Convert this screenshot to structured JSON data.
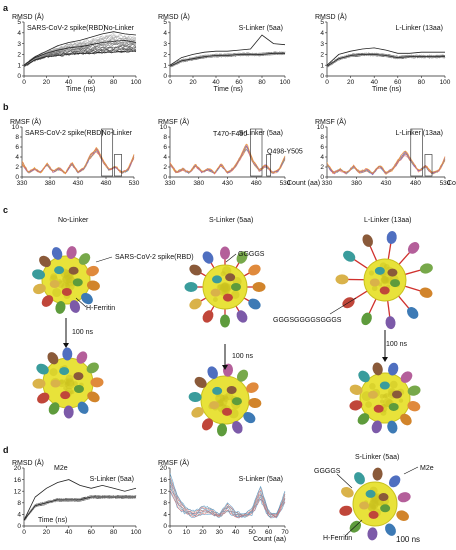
{
  "panel_letters": {
    "a": "a",
    "b": "b",
    "c": "c",
    "d": "d"
  },
  "chart_data": [
    {
      "id": "a1",
      "type": "line",
      "title": "No-Linker",
      "annotation": "SARS-CoV-2 spike(RBD)",
      "ylabel": "RMSD (Å)",
      "xlabel": "Time (ns)",
      "xlim": [
        0,
        100
      ],
      "ylim": [
        0,
        5
      ],
      "xticks": [
        0,
        20,
        40,
        60,
        80,
        100
      ],
      "yticks": [
        0,
        1,
        2,
        3,
        4,
        5
      ],
      "n_traces": 24,
      "trace_color": "#666666",
      "series": [
        {
          "x": [
            0,
            10,
            20,
            30,
            40,
            50,
            60,
            70,
            80,
            90,
            100
          ],
          "values": [
            1.0,
            1.7,
            2.1,
            2.4,
            2.6,
            2.7,
            2.9,
            3.1,
            3.2,
            3.3,
            3.1
          ]
        },
        {
          "x": [
            0,
            10,
            20,
            30,
            40,
            50,
            60,
            70,
            80,
            90,
            100
          ],
          "values": [
            1.0,
            1.8,
            2.3,
            2.8,
            3.1,
            3.3,
            3.6,
            3.9,
            4.1,
            3.9,
            3.8
          ]
        },
        {
          "x": [
            0,
            10,
            20,
            30,
            40,
            50,
            60,
            70,
            80,
            90,
            100
          ],
          "values": [
            0.9,
            1.5,
            1.8,
            1.9,
            2.0,
            2.1,
            2.1,
            2.2,
            2.2,
            2.3,
            2.3
          ]
        }
      ]
    },
    {
      "id": "a2",
      "type": "line",
      "title": "S-Linker (5aa)",
      "annotation": "",
      "ylabel": "RMSD (Å)",
      "xlabel": "Time (ns)",
      "xlim": [
        0,
        100
      ],
      "ylim": [
        0,
        5
      ],
      "xticks": [
        0,
        20,
        40,
        60,
        80,
        100
      ],
      "yticks": [
        0,
        1,
        2,
        3,
        4,
        5
      ],
      "n_traces": 24,
      "trace_color": "#555555",
      "series": [
        {
          "x": [
            0,
            10,
            20,
            30,
            40,
            50,
            60,
            70,
            80,
            90,
            100
          ],
          "values": [
            1.0,
            1.7,
            2.0,
            2.2,
            2.3,
            2.3,
            2.4,
            2.5,
            3.8,
            3.0,
            2.9
          ]
        },
        {
          "x": [
            0,
            10,
            20,
            30,
            40,
            50,
            60,
            70,
            80,
            90,
            100
          ],
          "values": [
            0.9,
            1.4,
            1.6,
            1.8,
            1.9,
            1.9,
            2.0,
            2.0,
            2.0,
            2.1,
            2.1
          ]
        }
      ]
    },
    {
      "id": "a3",
      "type": "line",
      "title": "L-Linker (13aa)",
      "annotation": "",
      "ylabel": "RMSD (Å)",
      "xlabel": "Time (ns)",
      "xlim": [
        0,
        100
      ],
      "ylim": [
        0,
        5
      ],
      "xticks": [
        0,
        20,
        40,
        60,
        80,
        100
      ],
      "yticks": [
        0,
        1,
        2,
        3,
        4,
        5
      ],
      "n_traces": 24,
      "trace_color": "#555555",
      "series": [
        {
          "x": [
            0,
            10,
            20,
            30,
            40,
            50,
            60,
            70,
            80,
            90,
            100
          ],
          "values": [
            1.0,
            2.0,
            2.3,
            2.5,
            2.6,
            2.4,
            2.1,
            2.1,
            2.2,
            2.2,
            2.2
          ]
        },
        {
          "x": [
            0,
            10,
            20,
            30,
            40,
            50,
            60,
            70,
            80,
            90,
            100
          ],
          "values": [
            0.9,
            1.6,
            1.9,
            2.0,
            2.0,
            1.9,
            1.7,
            1.8,
            1.8,
            1.8,
            1.8
          ]
        }
      ]
    },
    {
      "id": "b1",
      "type": "line",
      "title": "No-Linker",
      "annotation": "SARS-CoV-2 spike(RBD)",
      "ylabel": "RMSF (Å)",
      "xlabel": "",
      "xlim": [
        330,
        530
      ],
      "ylim": [
        0,
        10
      ],
      "xticks": [
        330,
        380,
        430,
        480,
        530
      ],
      "yticks": [
        0,
        2,
        4,
        6,
        8,
        10
      ],
      "boxes": [
        [
          472,
          492
        ],
        [
          495,
          508
        ]
      ],
      "colors": [
        "#e06666",
        "#f5a623",
        "#4a90c2",
        "#9b59b6"
      ],
      "series": [
        {
          "x": [
            330,
            345,
            360,
            370,
            385,
            400,
            410,
            420,
            440,
            455,
            465,
            475,
            480,
            485,
            490,
            498,
            505,
            515,
            530
          ],
          "values": [
            3.2,
            1.0,
            1.8,
            0.9,
            2.8,
            1.2,
            1.9,
            0.8,
            3.0,
            1.1,
            2.0,
            4.5,
            6.0,
            3.5,
            1.5,
            2.2,
            1.0,
            1.5,
            4.5
          ]
        },
        {
          "x": [
            330,
            345,
            360,
            370,
            385,
            400,
            410,
            420,
            440,
            455,
            465,
            475,
            480,
            485,
            490,
            498,
            505,
            515,
            530
          ],
          "values": [
            2.6,
            0.8,
            1.5,
            0.8,
            2.3,
            1.0,
            1.5,
            0.7,
            2.5,
            0.9,
            1.6,
            3.8,
            5.2,
            3.0,
            1.3,
            1.9,
            0.8,
            1.2,
            3.8
          ]
        }
      ]
    },
    {
      "id": "b2",
      "type": "line",
      "title": "S-Linker (5aa)",
      "annotation": "",
      "ylabel": "RMSF (Å)",
      "xlabel": "Count (aa)",
      "xlim": [
        330,
        530
      ],
      "ylim": [
        0,
        10
      ],
      "xticks": [
        330,
        380,
        430,
        480,
        530
      ],
      "yticks": [
        0,
        2,
        4,
        6,
        8,
        10
      ],
      "boxes": [
        [
          470,
          490
        ],
        [
          498,
          505
        ]
      ],
      "labels": [
        "T470-F490",
        "Q498-Y505"
      ],
      "colors": [
        "#e06666",
        "#f5a623",
        "#4a90c2",
        "#9b59b6"
      ],
      "series": [
        {
          "x": [
            330,
            345,
            360,
            370,
            385,
            400,
            410,
            420,
            440,
            455,
            465,
            475,
            480,
            485,
            490,
            498,
            505,
            515,
            530
          ],
          "values": [
            3.0,
            1.0,
            1.7,
            0.9,
            2.6,
            1.1,
            1.8,
            0.8,
            2.7,
            1.0,
            1.9,
            4.2,
            6.8,
            3.4,
            1.4,
            2.6,
            1.0,
            1.4,
            4.2
          ]
        },
        {
          "x": [
            330,
            345,
            360,
            370,
            385,
            400,
            410,
            420,
            440,
            455,
            465,
            475,
            480,
            485,
            490,
            498,
            505,
            515,
            530
          ],
          "values": [
            2.4,
            0.8,
            1.4,
            0.8,
            2.1,
            0.9,
            1.4,
            0.7,
            2.2,
            0.8,
            1.5,
            3.5,
            5.6,
            2.8,
            1.2,
            2.1,
            0.8,
            1.1,
            3.5
          ]
        }
      ]
    },
    {
      "id": "b3",
      "type": "line",
      "title": "L-Linker (13aa)",
      "annotation": "",
      "ylabel": "RMSF (Å)",
      "xlabel": "Count (aa)",
      "xlim": [
        330,
        530
      ],
      "ylim": [
        0,
        10
      ],
      "xticks": [
        330,
        380,
        430,
        480,
        530
      ],
      "yticks": [
        0,
        2,
        4,
        6,
        8,
        10
      ],
      "boxes": [
        [
          472,
          492
        ],
        [
          496,
          508
        ]
      ],
      "colors": [
        "#e06666",
        "#f5a623",
        "#4a90c2",
        "#9b59b6"
      ],
      "series": [
        {
          "x": [
            330,
            345,
            360,
            370,
            385,
            400,
            410,
            420,
            440,
            455,
            465,
            475,
            480,
            485,
            490,
            498,
            505,
            515,
            530
          ],
          "values": [
            2.8,
            0.9,
            1.6,
            0.8,
            2.4,
            1.0,
            1.7,
            0.7,
            2.5,
            0.9,
            1.7,
            3.8,
            5.4,
            3.1,
            1.3,
            2.4,
            0.9,
            1.3,
            4.0
          ]
        },
        {
          "x": [
            330,
            345,
            360,
            370,
            385,
            400,
            410,
            420,
            440,
            455,
            465,
            475,
            480,
            485,
            490,
            498,
            505,
            515,
            530
          ],
          "values": [
            2.2,
            0.7,
            1.3,
            0.7,
            1.9,
            0.8,
            1.3,
            0.6,
            2.0,
            0.7,
            1.3,
            3.1,
            4.5,
            2.6,
            1.1,
            1.9,
            0.7,
            1.0,
            3.3
          ]
        }
      ]
    },
    {
      "id": "d1",
      "type": "line",
      "title": "S-Linker (5aa)",
      "annotation": "M2e",
      "ylabel": "RMSD (Å)",
      "xlabel": "Time (ns)",
      "xlim": [
        0,
        100
      ],
      "ylim": [
        0,
        20
      ],
      "xticks": [
        0,
        20,
        40,
        60,
        80,
        100
      ],
      "yticks": [
        0,
        4,
        8,
        12,
        16,
        20
      ],
      "n_traces": 24,
      "trace_color": "#555555",
      "series": [
        {
          "x": [
            0,
            10,
            20,
            30,
            40,
            50,
            60,
            70,
            80,
            90,
            100
          ],
          "values": [
            2,
            10,
            13,
            15,
            16,
            14,
            13,
            14,
            13,
            12,
            13
          ]
        },
        {
          "x": [
            0,
            10,
            20,
            30,
            40,
            50,
            60,
            70,
            80,
            90,
            100
          ],
          "values": [
            2,
            7,
            8,
            9,
            9,
            9,
            10,
            10,
            10,
            10,
            10
          ]
        }
      ]
    },
    {
      "id": "d2",
      "type": "line",
      "title": "S-Linker (5aa)",
      "annotation": "",
      "ylabel": "RMSF (Å)",
      "xlabel": "Count (aa)",
      "xlim": [
        0,
        70
      ],
      "ylim": [
        0,
        20
      ],
      "xticks": [
        0,
        10,
        20,
        30,
        40,
        50,
        60,
        70
      ],
      "yticks": [
        0,
        4,
        8,
        12,
        16,
        20
      ],
      "colors": [
        "#4a90c2",
        "#e06666",
        "#999999"
      ],
      "series": [
        {
          "x": [
            0,
            5,
            10,
            15,
            20,
            25,
            30,
            35,
            40,
            45,
            50,
            55,
            60,
            65,
            70
          ],
          "values": [
            18,
            10,
            6,
            5,
            7,
            6,
            4,
            8,
            5,
            4,
            6,
            14,
            5,
            4,
            12
          ]
        },
        {
          "x": [
            0,
            5,
            10,
            15,
            20,
            25,
            30,
            35,
            40,
            45,
            50,
            55,
            60,
            65,
            70
          ],
          "values": [
            12,
            6,
            4,
            3,
            4,
            4,
            3,
            5,
            3,
            3,
            4,
            9,
            3,
            3,
            8
          ]
        }
      ]
    }
  ],
  "structures": {
    "no_linker": {
      "title": "No-Linker",
      "label_rbd": "SARS-CoV-2 spike(RBD)",
      "label_core": "H-Ferritin",
      "arrow_label": "100 ns"
    },
    "s_linker": {
      "title": "S-Linker (5aa)",
      "label_linker": "GGGGS",
      "arrow_label": "100 ns"
    },
    "l_linker": {
      "title": "L-Linker (13aa)",
      "label_linker": "GGGSGGGGSGGGS",
      "arrow_label": "100 ns"
    },
    "d_struct": {
      "title": "S-Linker (5aa)",
      "label_m2e": "M2e",
      "label_linker": "GGGGS",
      "label_core": "H-Ferritin",
      "time": "100 ns"
    }
  },
  "colors": {
    "ferritin": "#e8e23a",
    "ferritin_dark": "#c9c21f",
    "linker": "#d0312d"
  }
}
